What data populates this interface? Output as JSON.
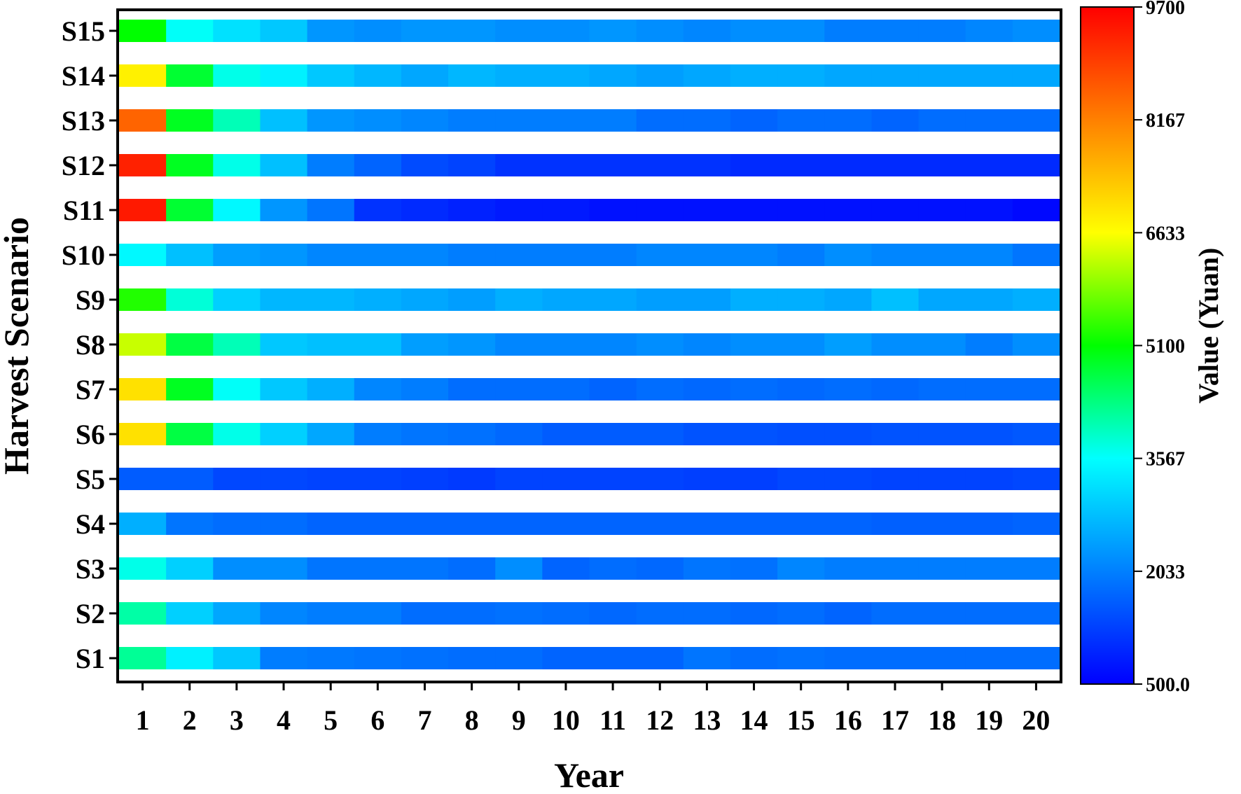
{
  "chart_data": {
    "type": "heatmap",
    "title": "",
    "xlabel": "Year",
    "ylabel": "Harvest Scenario",
    "colorbar_label": "Value (Yuan)",
    "colorbar_range": [
      500.0,
      9700
    ],
    "colorbar_ticks": [
      "500.0",
      "2033",
      "3567",
      "5100",
      "6633",
      "8167",
      "9700"
    ],
    "colorbar_tick_values": [
      500.0,
      2033,
      3567,
      5100,
      6633,
      8167,
      9700
    ],
    "colorscale": [
      "#0000ff",
      "#0080ff",
      "#00ffff",
      "#00ff00",
      "#ffff00",
      "#ff8000",
      "#ff0000"
    ],
    "grid": false,
    "x": [
      "1",
      "2",
      "3",
      "4",
      "5",
      "6",
      "7",
      "8",
      "9",
      "10",
      "11",
      "12",
      "13",
      "14",
      "15",
      "16",
      "17",
      "18",
      "19",
      "20"
    ],
    "y": [
      "S1",
      "S2",
      "S3",
      "S4",
      "S5",
      "S6",
      "S7",
      "S8",
      "S9",
      "S10",
      "S11",
      "S12",
      "S13",
      "S14",
      "S15"
    ],
    "values": [
      [
        4200,
        3400,
        2900,
        2000,
        1950,
        1900,
        1850,
        1800,
        1800,
        1700,
        1700,
        1700,
        1900,
        1800,
        1850,
        1800,
        1800,
        1800,
        1800,
        1800
      ],
      [
        4100,
        3000,
        2500,
        2100,
        2000,
        2000,
        1800,
        1800,
        1850,
        1800,
        1750,
        1800,
        1800,
        1750,
        1800,
        1700,
        1800,
        1800,
        1800,
        1800
      ],
      [
        3700,
        3000,
        2200,
        2200,
        1900,
        1900,
        1900,
        1800,
        2200,
        1700,
        1800,
        1750,
        1900,
        1850,
        2100,
        2000,
        2000,
        2000,
        2000,
        2000
      ],
      [
        2600,
        1900,
        1800,
        1800,
        1700,
        1700,
        1700,
        1700,
        1700,
        1700,
        1700,
        1700,
        1700,
        1700,
        1700,
        1700,
        1650,
        1650,
        1650,
        1700
      ],
      [
        1600,
        1600,
        1350,
        1350,
        1300,
        1300,
        1250,
        1200,
        1300,
        1300,
        1300,
        1300,
        1250,
        1250,
        1350,
        1350,
        1300,
        1300,
        1300,
        1350
      ],
      [
        7000,
        4700,
        3700,
        3000,
        2500,
        2000,
        1900,
        1850,
        1750,
        1600,
        1600,
        1600,
        1500,
        1500,
        1450,
        1450,
        1500,
        1500,
        1500,
        1550
      ],
      [
        7000,
        4900,
        3600,
        2900,
        2600,
        2100,
        2000,
        1800,
        1800,
        1800,
        1700,
        1800,
        1750,
        1800,
        1750,
        1800,
        1750,
        1800,
        1800,
        1800
      ],
      [
        6300,
        4700,
        4000,
        2900,
        2800,
        2800,
        2400,
        2300,
        2100,
        2100,
        2100,
        2200,
        2100,
        2200,
        2200,
        2400,
        2200,
        2200,
        2000,
        2200
      ],
      [
        5300,
        3800,
        3000,
        2700,
        2700,
        2600,
        2500,
        2400,
        2600,
        2500,
        2500,
        2400,
        2400,
        2600,
        2600,
        2500,
        2800,
        2500,
        2500,
        2600
      ],
      [
        3500,
        2800,
        2400,
        2300,
        2100,
        2100,
        2100,
        2000,
        2000,
        2000,
        2000,
        2100,
        2100,
        2100,
        2000,
        2200,
        2100,
        2100,
        2100,
        1900
      ],
      [
        9400,
        4800,
        3500,
        2300,
        1900,
        1100,
        1000,
        900,
        800,
        800,
        700,
        700,
        700,
        700,
        700,
        700,
        700,
        700,
        700,
        600
      ],
      [
        9300,
        4900,
        3700,
        2800,
        2000,
        1700,
        1400,
        1300,
        1100,
        1100,
        1100,
        1100,
        1100,
        1000,
        1000,
        1000,
        1000,
        1000,
        1000,
        1000
      ],
      [
        8500,
        4900,
        4000,
        2800,
        2300,
        2200,
        2100,
        2000,
        2000,
        2000,
        2000,
        1800,
        1800,
        1700,
        1800,
        1800,
        1700,
        1800,
        1800,
        1800
      ],
      [
        6800,
        4800,
        3700,
        3400,
        2900,
        2700,
        2500,
        2700,
        2600,
        2600,
        2500,
        2400,
        2500,
        2600,
        2600,
        2500,
        2500,
        2500,
        2500,
        2500
      ],
      [
        5100,
        3600,
        3200,
        2900,
        2300,
        2200,
        2300,
        2300,
        2200,
        2200,
        2300,
        2200,
        2100,
        2200,
        2200,
        2000,
        2000,
        2000,
        2100,
        2200
      ]
    ]
  }
}
